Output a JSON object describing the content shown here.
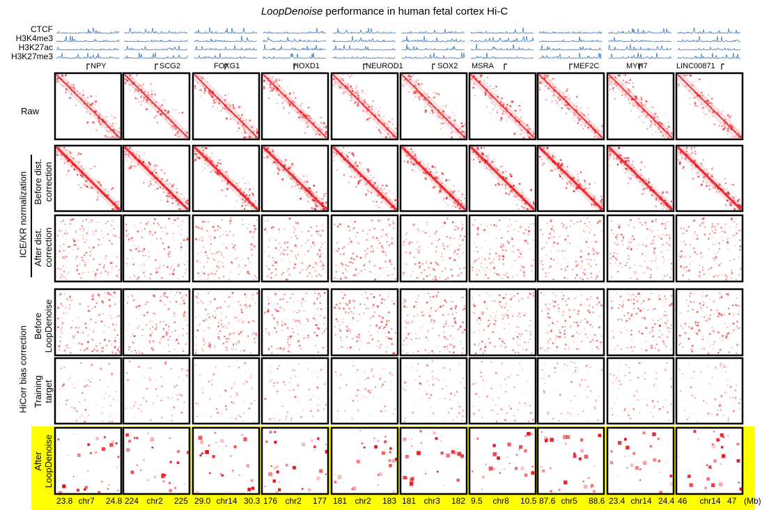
{
  "title": {
    "italic": "LoopDenoise",
    "rest": " performance in human fetal cortex Hi-C"
  },
  "tracks": [
    "CTCF",
    "H3K4me3",
    "H3K27ac",
    "H3K27me3"
  ],
  "track_color": "#3a78c2",
  "heat_color": "#e8141c",
  "highlight_color": "#ffff00",
  "genes": [
    "NPY",
    "SCG2",
    "FOXG1",
    "HOXD1",
    "NEUROD1",
    "SOX2",
    "MSRA",
    "MEF2C",
    "MYH7",
    "LINC00871"
  ],
  "rows": {
    "raw": "Raw",
    "ice_group": "ICE/KR normalization",
    "ice_before": [
      "Before dist.",
      "correction"
    ],
    "ice_after": [
      "After dist.",
      "correction"
    ],
    "hicorr_group": "HiCorr bias correction",
    "hicorr_before": [
      "Before",
      "LoopDenoise"
    ],
    "training": [
      "Training",
      "target"
    ],
    "after": [
      "After",
      "LoopDenoise"
    ]
  },
  "axes": [
    {
      "left": "23.8",
      "chr": "chr7",
      "right": "24.8"
    },
    {
      "left": "224",
      "chr": "chr2",
      "right": "225"
    },
    {
      "left": "29.0",
      "chr": "chr14",
      "right": "30.3"
    },
    {
      "left": "176",
      "chr": "chr2",
      "right": "177"
    },
    {
      "left": "181",
      "chr": "chr2",
      "right": "183"
    },
    {
      "left": "181",
      "chr": "chr3",
      "right": "182"
    },
    {
      "left": "9.5",
      "chr": "chr8",
      "right": "10.5"
    },
    {
      "left": "87.6",
      "chr": "chr5",
      "right": "88.6"
    },
    {
      "left": "23.4",
      "chr": "chr14",
      "right": "24.4"
    },
    {
      "left": "46",
      "chr": "chr14",
      "right": "47"
    }
  ],
  "unit": "(Mb)"
}
